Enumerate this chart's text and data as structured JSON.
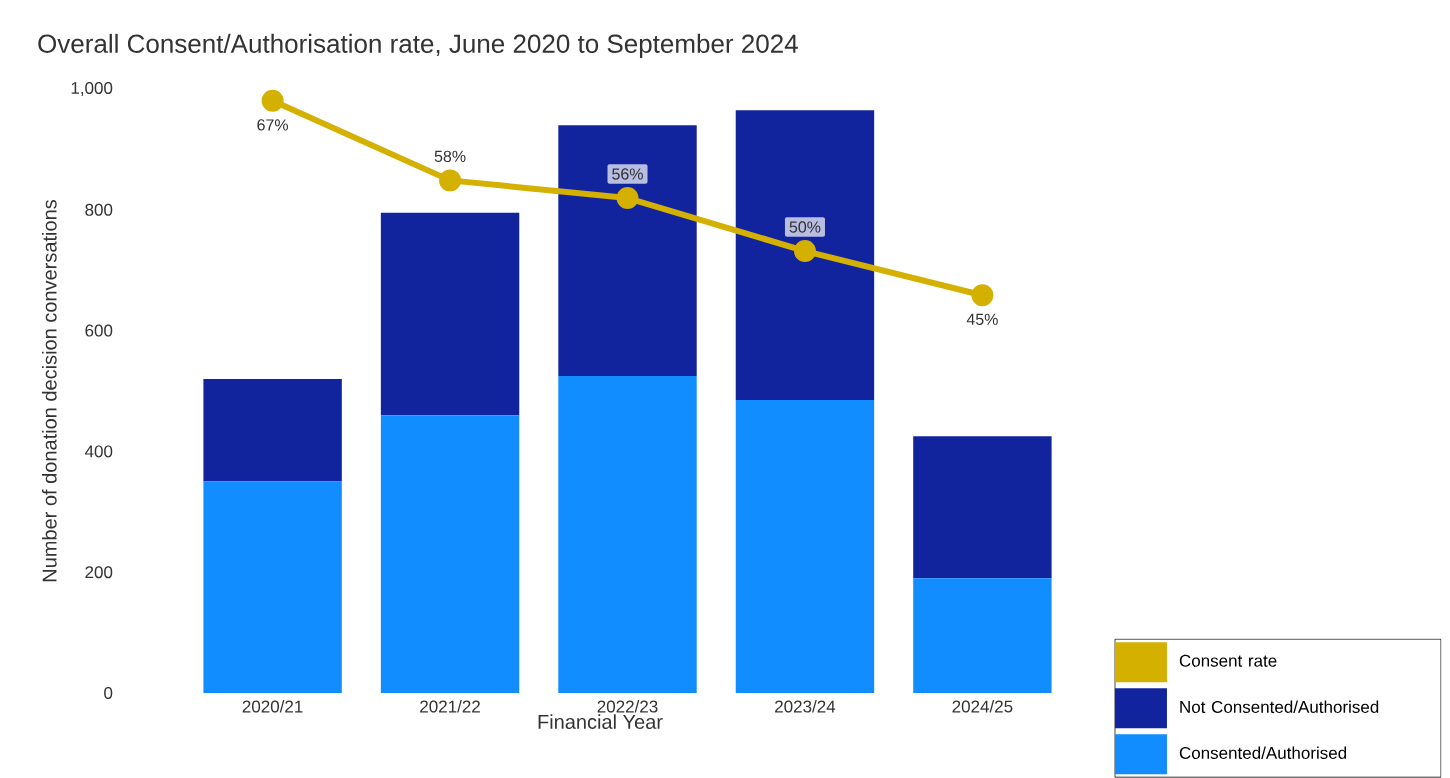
{
  "chart_data": {
    "type": "bar",
    "title": "Overall Consent/Authorisation rate, June 2020 to September 2024",
    "xlabel": "Financial Year",
    "ylabel": "Number of donation decision conversations",
    "categories": [
      "2020/21",
      "2021/22",
      "2022/23",
      "2023/24",
      "2024/25"
    ],
    "stacked": true,
    "series": [
      {
        "name": "Consented/Authorised",
        "color": "#118dff",
        "values": [
          350,
          460,
          525,
          485,
          190
        ]
      },
      {
        "name": "Not Consented/Authorised",
        "color": "#12239e",
        "values": [
          170,
          335,
          415,
          480,
          235
        ]
      },
      {
        "name": "Consent rate",
        "type": "line",
        "axis": "y2",
        "color": "#d4b000",
        "values": [
          67,
          58,
          56,
          50,
          45
        ],
        "value_labels": [
          "67%",
          "58%",
          "56%",
          "50%",
          "45%"
        ]
      }
    ],
    "marker": "circle",
    "ylim": [
      0,
      1000
    ],
    "yticks": [
      0,
      200,
      400,
      600,
      800,
      {
        "value": 1000,
        "label": "1,000"
      }
    ],
    "legend": "bottom right",
    "grid": false
  }
}
